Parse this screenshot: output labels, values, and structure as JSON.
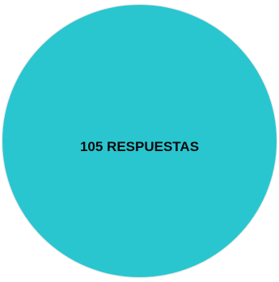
{
  "circle": {
    "label": "105 RESPUESTAS",
    "color": "#29c6d0"
  }
}
